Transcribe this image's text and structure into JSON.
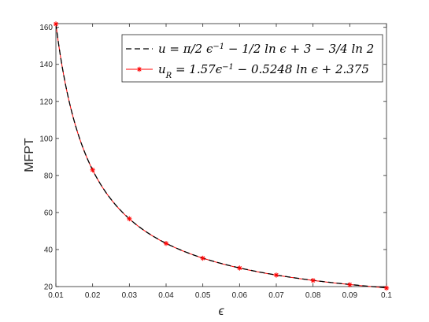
{
  "chart_data": {
    "type": "line",
    "xlabel": "ϵ",
    "ylabel": "MFPT",
    "xlim": [
      0.01,
      0.1
    ],
    "ylim": [
      20,
      162
    ],
    "xticks": [
      0.01,
      0.02,
      0.03,
      0.04,
      0.05,
      0.06,
      0.07,
      0.08,
      0.09,
      0.1
    ],
    "xtick_labels": [
      "0.01",
      "0.02",
      "0.03",
      "0.04",
      "0.05",
      "0.06",
      "0.07",
      "0.08",
      "0.09",
      "0.1"
    ],
    "yticks": [
      20,
      40,
      60,
      80,
      100,
      120,
      140,
      160
    ],
    "ytick_labels": [
      "20",
      "40",
      "60",
      "80",
      "100",
      "120",
      "140",
      "160"
    ],
    "grid": false,
    "legend_position": "top-right",
    "series": [
      {
        "name": "u = π/2 ϵ⁻¹ − ½ ln ϵ + 3 − ¾ ln 2",
        "style": "dashed",
        "color": "#000000",
        "x": [
          0.01,
          0.015,
          0.02,
          0.025,
          0.03,
          0.035,
          0.04,
          0.045,
          0.05,
          0.055,
          0.06,
          0.065,
          0.07,
          0.075,
          0.08,
          0.085,
          0.09,
          0.095,
          0.1
        ],
        "y": [
          162.0,
          109.9,
          83.8,
          68.1,
          57.6,
          50.1,
          44.5,
          40.1,
          36.6,
          33.7,
          31.3,
          29.3,
          27.6,
          26.1,
          24.8,
          23.6,
          22.6,
          21.7,
          20.8
        ]
      },
      {
        "name": "u_R = 1.57ϵ⁻¹ − 0.5248 ln ϵ + 2.375",
        "style": "solid-with-star-markers",
        "color": "#ff0000",
        "x": [
          0.01,
          0.02,
          0.03,
          0.04,
          0.05,
          0.06,
          0.07,
          0.08,
          0.09,
          0.1
        ],
        "y": [
          161.8,
          83.0,
          56.6,
          43.3,
          35.3,
          30.0,
          26.2,
          23.3,
          21.0,
          19.2
        ]
      }
    ]
  },
  "legend": {
    "entries": [
      {
        "parts": [
          [
            "u = ",
            0
          ],
          [
            "π",
            0
          ],
          [
            "/2 ϵ",
            0
          ],
          [
            "−1",
            1
          ],
          [
            " − ",
            0
          ],
          [
            "1/2",
            0
          ],
          [
            " ln ϵ + 3 − ",
            0
          ],
          [
            "3/4",
            0
          ],
          [
            " ln 2",
            0
          ]
        ]
      },
      {
        "parts": [
          [
            "u",
            0
          ],
          [
            "R",
            2
          ],
          [
            " = 1.57ϵ",
            0
          ],
          [
            "−1",
            1
          ],
          [
            " − 0.5248 ln ϵ + 2.375",
            0
          ]
        ]
      }
    ]
  },
  "colors": {
    "axis": "#262626",
    "series_1": "#000000",
    "series_2": "#ff0000",
    "background": "#ffffff"
  }
}
